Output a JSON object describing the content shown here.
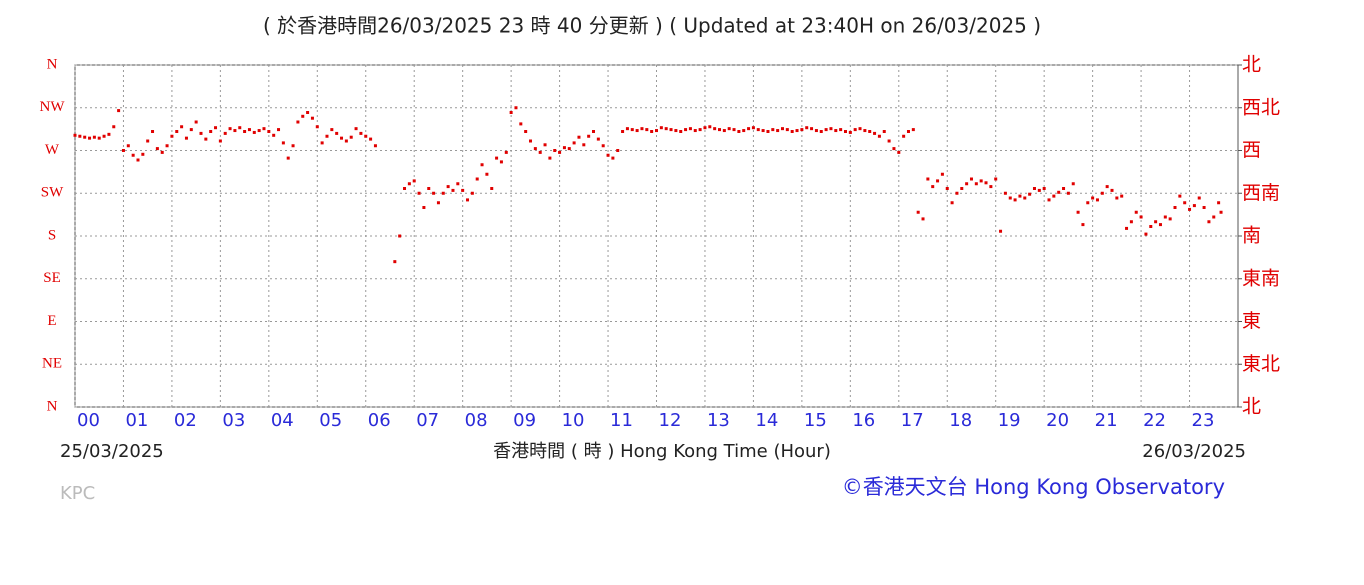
{
  "chart_data": {
    "type": "scatter",
    "title": "( 於香港時間26/03/2025 23 時 40 分更新 ) ( Updated at 23:40H on 26/03/2025 )",
    "xlabel": "香港時間 ( 時 ) Hong Kong Time (Hour)",
    "x_start_label": "25/03/2025",
    "x_end_label": "26/03/2025",
    "station": "KPC",
    "credit": "©香港天文台 Hong Kong Observatory",
    "color": "#e00000",
    "grid": true,
    "xlim": [
      0,
      24
    ],
    "ylim": [
      0,
      360
    ],
    "y2lim": [
      0,
      360
    ],
    "xticks": [
      {
        "value": 0,
        "label": "00"
      },
      {
        "value": 1,
        "label": "01"
      },
      {
        "value": 2,
        "label": "02"
      },
      {
        "value": 3,
        "label": "03"
      },
      {
        "value": 4,
        "label": "04"
      },
      {
        "value": 5,
        "label": "05"
      },
      {
        "value": 6,
        "label": "06"
      },
      {
        "value": 7,
        "label": "07"
      },
      {
        "value": 8,
        "label": "08"
      },
      {
        "value": 9,
        "label": "09"
      },
      {
        "value": 10,
        "label": "10"
      },
      {
        "value": 11,
        "label": "11"
      },
      {
        "value": 12,
        "label": "12"
      },
      {
        "value": 13,
        "label": "13"
      },
      {
        "value": 14,
        "label": "14"
      },
      {
        "value": 15,
        "label": "15"
      },
      {
        "value": 16,
        "label": "16"
      },
      {
        "value": 17,
        "label": "17"
      },
      {
        "value": 18,
        "label": "18"
      },
      {
        "value": 19,
        "label": "19"
      },
      {
        "value": 20,
        "label": "20"
      },
      {
        "value": 21,
        "label": "21"
      },
      {
        "value": 22,
        "label": "22"
      },
      {
        "value": 23,
        "label": "23"
      }
    ],
    "yticks": [
      {
        "value": 0,
        "label": "N"
      },
      {
        "value": 45,
        "label": "NE"
      },
      {
        "value": 90,
        "label": "E"
      },
      {
        "value": 135,
        "label": "SE"
      },
      {
        "value": 180,
        "label": "S"
      },
      {
        "value": 225,
        "label": "SW"
      },
      {
        "value": 270,
        "label": "W"
      },
      {
        "value": 315,
        "label": "NW"
      },
      {
        "value": 360,
        "label": "N"
      }
    ],
    "y2ticks": [
      {
        "value": 0,
        "label": "北"
      },
      {
        "value": 45,
        "label": "東北"
      },
      {
        "value": 90,
        "label": "東"
      },
      {
        "value": 135,
        "label": "東南"
      },
      {
        "value": 180,
        "label": "南"
      },
      {
        "value": 225,
        "label": "西南"
      },
      {
        "value": 270,
        "label": "西"
      },
      {
        "value": 315,
        "label": "西北"
      },
      {
        "value": 360,
        "label": "北"
      }
    ],
    "x": [
      0.0,
      0.1,
      0.2,
      0.3,
      0.4,
      0.5,
      0.6,
      0.7,
      0.8,
      0.9,
      1.0,
      1.1,
      1.2,
      1.3,
      1.4,
      1.5,
      1.6,
      1.7,
      1.8,
      1.9,
      2.0,
      2.1,
      2.2,
      2.3,
      2.4,
      2.5,
      2.6,
      2.7,
      2.8,
      2.9,
      3.0,
      3.1,
      3.2,
      3.3,
      3.4,
      3.5,
      3.6,
      3.7,
      3.8,
      3.9,
      4.0,
      4.1,
      4.2,
      4.3,
      4.4,
      4.5,
      4.6,
      4.7,
      4.8,
      4.9,
      5.0,
      5.1,
      5.2,
      5.3,
      5.4,
      5.5,
      5.6,
      5.7,
      5.8,
      5.9,
      6.0,
      6.1,
      6.2,
      6.6,
      6.7,
      6.8,
      6.9,
      7.0,
      7.1,
      7.2,
      7.3,
      7.4,
      7.5,
      7.6,
      7.7,
      7.8,
      7.9,
      8.0,
      8.1,
      8.2,
      8.3,
      8.4,
      8.5,
      8.6,
      8.7,
      8.8,
      8.9,
      9.0,
      9.1,
      9.2,
      9.3,
      9.4,
      9.5,
      9.6,
      9.7,
      9.8,
      9.9,
      10.0,
      10.1,
      10.2,
      10.3,
      10.4,
      10.5,
      10.6,
      10.7,
      10.8,
      10.9,
      11.0,
      11.1,
      11.2,
      11.3,
      11.4,
      11.5,
      11.6,
      11.7,
      11.8,
      11.9,
      12.0,
      12.1,
      12.2,
      12.3,
      12.4,
      12.5,
      12.6,
      12.7,
      12.8,
      12.9,
      13.0,
      13.1,
      13.2,
      13.3,
      13.4,
      13.5,
      13.6,
      13.7,
      13.8,
      13.9,
      14.0,
      14.1,
      14.2,
      14.3,
      14.4,
      14.5,
      14.6,
      14.7,
      14.8,
      14.9,
      15.0,
      15.1,
      15.2,
      15.3,
      15.4,
      15.5,
      15.6,
      15.7,
      15.8,
      15.9,
      16.0,
      16.1,
      16.2,
      16.3,
      16.4,
      16.5,
      16.6,
      16.7,
      16.8,
      16.9,
      17.0,
      17.1,
      17.2,
      17.3,
      17.4,
      17.5,
      17.6,
      17.7,
      17.8,
      17.9,
      18.0,
      18.1,
      18.2,
      18.3,
      18.4,
      18.5,
      18.6,
      18.7,
      18.8,
      18.9,
      19.0,
      19.1,
      19.2,
      19.3,
      19.4,
      19.5,
      19.6,
      19.7,
      19.8,
      19.9,
      20.0,
      20.1,
      20.2,
      20.3,
      20.4,
      20.5,
      20.6,
      20.7,
      20.8,
      20.9,
      21.0,
      21.1,
      21.2,
      21.3,
      21.4,
      21.5,
      21.6,
      21.7,
      21.8,
      21.9,
      22.0,
      22.1,
      22.2,
      22.3,
      22.4,
      22.5,
      22.6,
      22.7,
      22.8,
      22.9,
      23.0,
      23.1,
      23.2,
      23.3,
      23.4,
      23.5,
      23.6,
      23.65
    ],
    "values": [
      286,
      285,
      284,
      283,
      284,
      283,
      285,
      287,
      295,
      312,
      270,
      275,
      265,
      260,
      266,
      280,
      290,
      272,
      268,
      275,
      285,
      290,
      295,
      283,
      292,
      300,
      288,
      282,
      290,
      294,
      280,
      288,
      293,
      291,
      294,
      290,
      292,
      289,
      291,
      293,
      290,
      286,
      292,
      278,
      262,
      275,
      300,
      306,
      310,
      304,
      295,
      278,
      285,
      292,
      288,
      283,
      280,
      284,
      293,
      288,
      285,
      282,
      275,
      153,
      180,
      230,
      235,
      238,
      225,
      210,
      230,
      225,
      215,
      225,
      232,
      228,
      235,
      228,
      218,
      225,
      240,
      255,
      245,
      230,
      262,
      258,
      268,
      310,
      315,
      298,
      290,
      280,
      272,
      268,
      276,
      262,
      270,
      268,
      273,
      272,
      278,
      284,
      276,
      285,
      290,
      282,
      275,
      265,
      262,
      270,
      290,
      293,
      292,
      291,
      293,
      292,
      290,
      291,
      294,
      293,
      292,
      291,
      290,
      292,
      293,
      291,
      292,
      294,
      295,
      293,
      292,
      291,
      293,
      292,
      290,
      291,
      293,
      294,
      292,
      291,
      290,
      292,
      291,
      293,
      292,
      290,
      291,
      292,
      294,
      293,
      291,
      290,
      292,
      293,
      291,
      292,
      290,
      289,
      292,
      293,
      291,
      290,
      288,
      285,
      290,
      280,
      272,
      268,
      285,
      290,
      292,
      205,
      198,
      240,
      232,
      238,
      245,
      230,
      215,
      225,
      230,
      235,
      240,
      235,
      238,
      236,
      232,
      240,
      185,
      225,
      220,
      218,
      222,
      220,
      224,
      230,
      228,
      230,
      218,
      222,
      226,
      230,
      225,
      235,
      205,
      192,
      215,
      220,
      218,
      225,
      232,
      228,
      220,
      222,
      188,
      195,
      205,
      200,
      182,
      190,
      195,
      192,
      200,
      198,
      210,
      222,
      215,
      208,
      212,
      220,
      210,
      195,
      200,
      215,
      205
    ]
  }
}
